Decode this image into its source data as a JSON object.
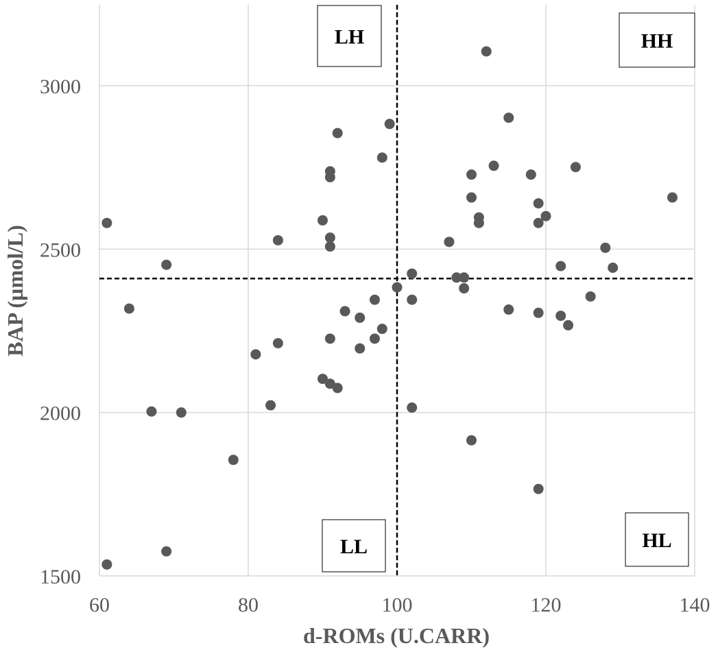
{
  "chart_data": {
    "type": "scatter",
    "xlabel": "d-ROMs (U.CARR)",
    "ylabel": "BAP (µmol/L)",
    "xlim": [
      60,
      140
    ],
    "ylim": [
      1500,
      3250
    ],
    "x_ticks": [
      60,
      80,
      100,
      120,
      140
    ],
    "y_ticks": [
      1500,
      2000,
      2500,
      3000
    ],
    "grid": true,
    "marker_color": "#595959",
    "reference_lines": {
      "x": 100,
      "y": 2410,
      "style": "dashed",
      "color": "#000000"
    },
    "quadrant_labels": [
      "LH",
      "HH",
      "LL",
      "HL"
    ],
    "points": [
      {
        "x": 61,
        "y": 2580
      },
      {
        "x": 61,
        "y": 1535
      },
      {
        "x": 64,
        "y": 2318
      },
      {
        "x": 67,
        "y": 2003
      },
      {
        "x": 69,
        "y": 2452
      },
      {
        "x": 69,
        "y": 1575
      },
      {
        "x": 71,
        "y": 2000
      },
      {
        "x": 78,
        "y": 1855
      },
      {
        "x": 81,
        "y": 2178
      },
      {
        "x": 83,
        "y": 2022
      },
      {
        "x": 84,
        "y": 2527
      },
      {
        "x": 84,
        "y": 2212
      },
      {
        "x": 90,
        "y": 2588
      },
      {
        "x": 90,
        "y": 2103
      },
      {
        "x": 91,
        "y": 2738
      },
      {
        "x": 91,
        "y": 2720
      },
      {
        "x": 91,
        "y": 2535
      },
      {
        "x": 91,
        "y": 2508
      },
      {
        "x": 91,
        "y": 2226
      },
      {
        "x": 91,
        "y": 2088
      },
      {
        "x": 92,
        "y": 2855
      },
      {
        "x": 92,
        "y": 2075
      },
      {
        "x": 93,
        "y": 2310
      },
      {
        "x": 95,
        "y": 2290
      },
      {
        "x": 95,
        "y": 2196
      },
      {
        "x": 97,
        "y": 2345
      },
      {
        "x": 97,
        "y": 2226
      },
      {
        "x": 98,
        "y": 2780
      },
      {
        "x": 98,
        "y": 2256
      },
      {
        "x": 99,
        "y": 2883
      },
      {
        "x": 100,
        "y": 2383
      },
      {
        "x": 102,
        "y": 2425
      },
      {
        "x": 102,
        "y": 2345
      },
      {
        "x": 102,
        "y": 2015
      },
      {
        "x": 107,
        "y": 2522
      },
      {
        "x": 108,
        "y": 2413
      },
      {
        "x": 109,
        "y": 2413
      },
      {
        "x": 109,
        "y": 2380
      },
      {
        "x": 110,
        "y": 2728
      },
      {
        "x": 110,
        "y": 2658
      },
      {
        "x": 110,
        "y": 1915
      },
      {
        "x": 111,
        "y": 2597
      },
      {
        "x": 111,
        "y": 2580
      },
      {
        "x": 112,
        "y": 3105
      },
      {
        "x": 113,
        "y": 2755
      },
      {
        "x": 115,
        "y": 2902
      },
      {
        "x": 115,
        "y": 2315
      },
      {
        "x": 118,
        "y": 2728
      },
      {
        "x": 119,
        "y": 2640
      },
      {
        "x": 119,
        "y": 2580
      },
      {
        "x": 119,
        "y": 2305
      },
      {
        "x": 119,
        "y": 1766
      },
      {
        "x": 120,
        "y": 2601
      },
      {
        "x": 122,
        "y": 2448
      },
      {
        "x": 122,
        "y": 2296
      },
      {
        "x": 123,
        "y": 2267
      },
      {
        "x": 124,
        "y": 2751
      },
      {
        "x": 126,
        "y": 2355
      },
      {
        "x": 128,
        "y": 2504
      },
      {
        "x": 129,
        "y": 2443
      },
      {
        "x": 137,
        "y": 2658
      }
    ]
  }
}
